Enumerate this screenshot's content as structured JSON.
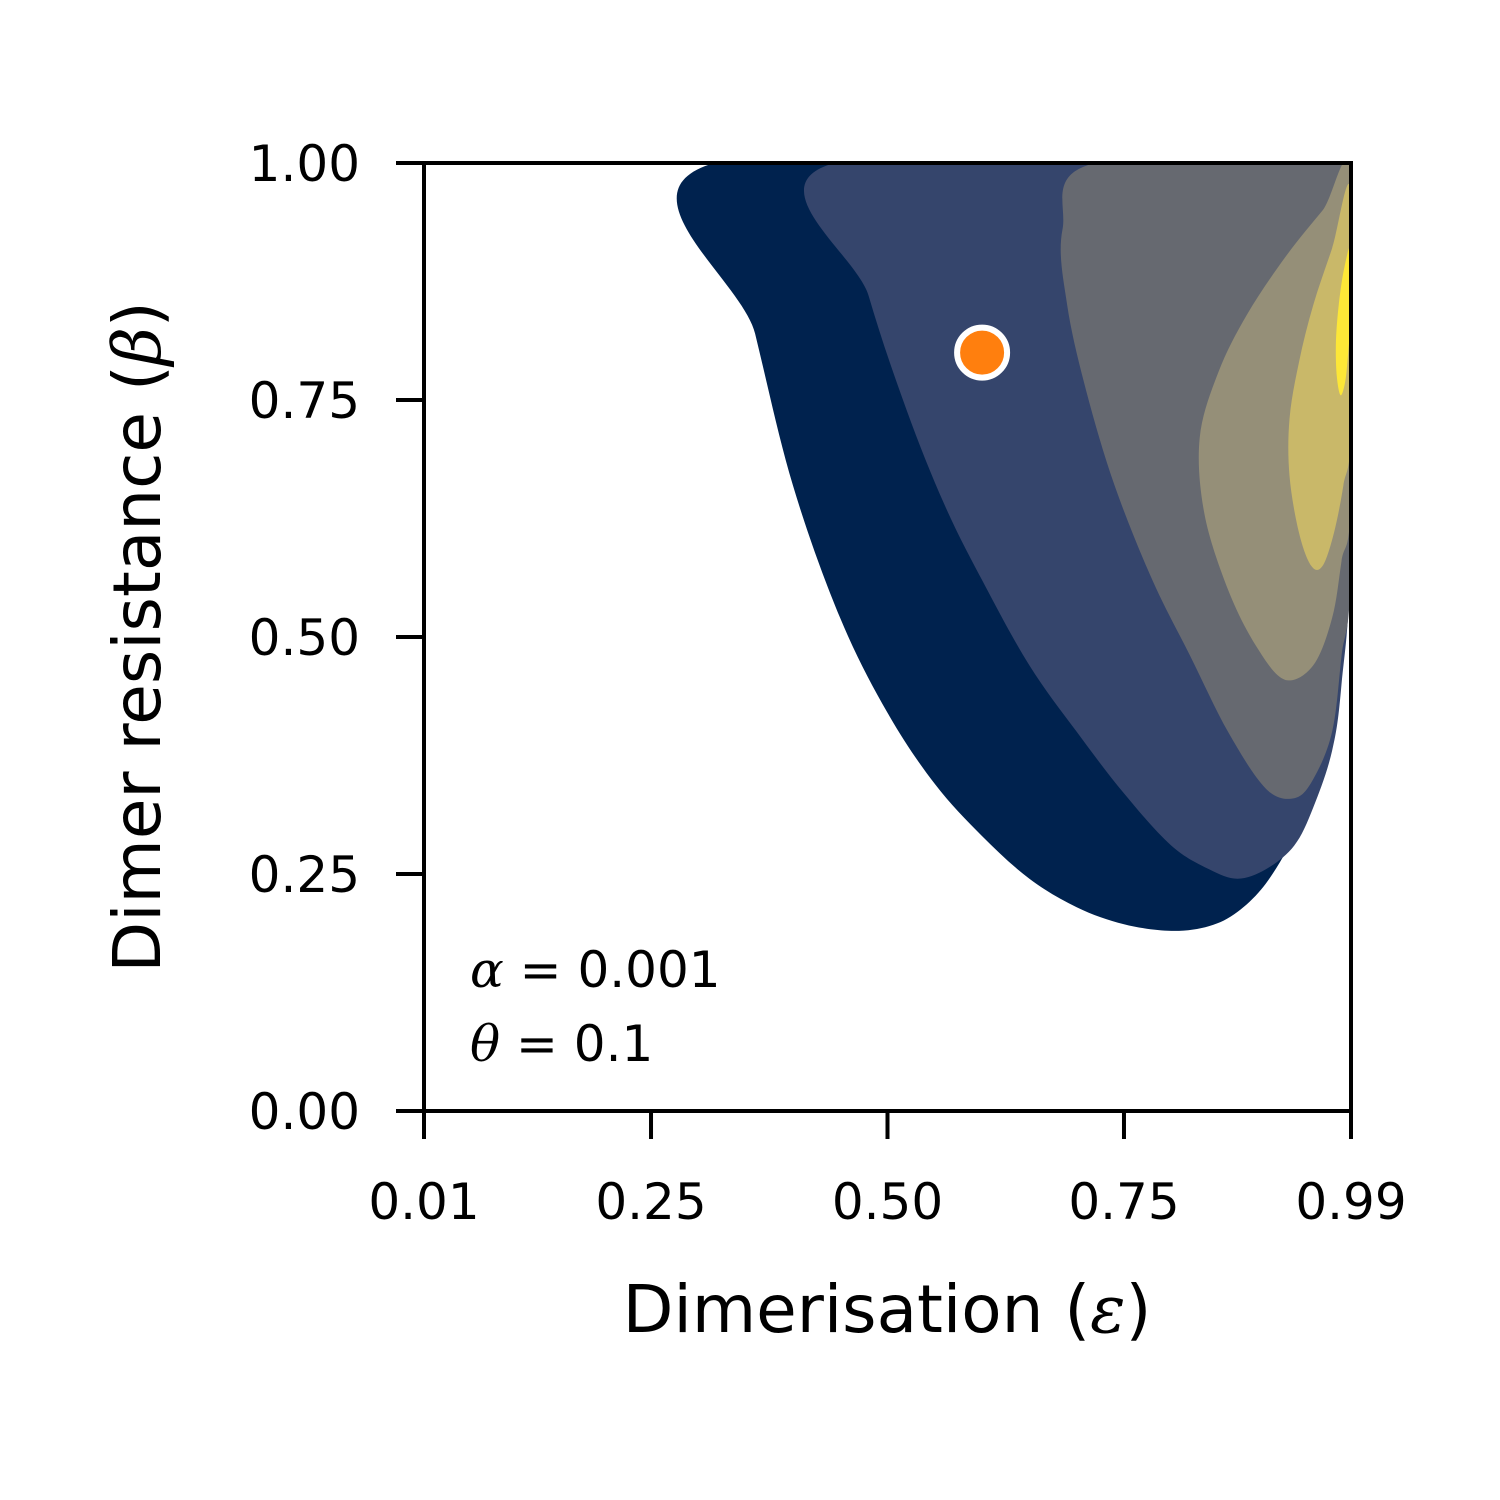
{
  "chart_data": {
    "type": "contour",
    "xlabel": {
      "text": "Dimerisation (",
      "symbol": "ε",
      "close": ")"
    },
    "ylabel": {
      "text": "Dimer resistance (",
      "symbol": "β",
      "close": ")"
    },
    "xlim": [
      0.01,
      0.99
    ],
    "ylim": [
      0.0,
      1.0
    ],
    "xticks": [
      0.01,
      0.25,
      0.5,
      0.75,
      0.99
    ],
    "xtick_labels": [
      "0.01",
      "0.25",
      "0.50",
      "0.75",
      "0.99"
    ],
    "yticks": [
      0.0,
      0.25,
      0.5,
      0.75,
      1.0
    ],
    "ytick_labels": [
      "0.00",
      "0.25",
      "0.50",
      "0.75",
      "1.00"
    ],
    "grid": false,
    "contour_levels": [
      {
        "level": 1,
        "color": "#00224e",
        "boundary": [
          [
            0.317,
            1.0
          ],
          [
            0.36,
            0.82
          ],
          [
            0.4,
            0.66
          ],
          [
            0.45,
            0.52
          ],
          [
            0.5,
            0.42
          ],
          [
            0.55,
            0.345
          ],
          [
            0.6,
            0.29
          ],
          [
            0.65,
            0.245
          ],
          [
            0.7,
            0.215
          ],
          [
            0.75,
            0.197
          ],
          [
            0.8,
            0.19
          ],
          [
            0.84,
            0.195
          ],
          [
            0.87,
            0.21
          ],
          [
            0.9,
            0.24
          ],
          [
            0.93,
            0.29
          ],
          [
            0.95,
            0.34
          ],
          [
            0.97,
            0.43
          ],
          [
            0.98,
            0.55
          ],
          [
            0.99,
            0.66
          ],
          [
            0.99,
            1.0
          ]
        ]
      },
      {
        "level": 2,
        "color": "#35456c",
        "boundary": [
          [
            0.444,
            1.0
          ],
          [
            0.48,
            0.86
          ],
          [
            0.52,
            0.74
          ],
          [
            0.56,
            0.64
          ],
          [
            0.6,
            0.56
          ],
          [
            0.65,
            0.47
          ],
          [
            0.7,
            0.4
          ],
          [
            0.75,
            0.335
          ],
          [
            0.8,
            0.28
          ],
          [
            0.84,
            0.255
          ],
          [
            0.87,
            0.245
          ],
          [
            0.9,
            0.255
          ],
          [
            0.93,
            0.28
          ],
          [
            0.95,
            0.32
          ],
          [
            0.97,
            0.38
          ],
          [
            0.98,
            0.45
          ],
          [
            0.99,
            0.6
          ],
          [
            0.99,
            1.0
          ]
        ]
      },
      {
        "level": 3,
        "color": "#666970",
        "boundary": [
          [
            0.99,
            1.0
          ],
          [
            0.72,
            1.0
          ],
          [
            0.685,
            0.93
          ],
          [
            0.69,
            0.85
          ],
          [
            0.71,
            0.76
          ],
          [
            0.74,
            0.66
          ],
          [
            0.78,
            0.56
          ],
          [
            0.82,
            0.48
          ],
          [
            0.86,
            0.4
          ],
          [
            0.9,
            0.34
          ],
          [
            0.93,
            0.33
          ],
          [
            0.95,
            0.35
          ],
          [
            0.97,
            0.4
          ],
          [
            0.98,
            0.48
          ],
          [
            0.99,
            0.58
          ]
        ]
      },
      {
        "level": 4,
        "color": "#958f78",
        "boundary": [
          [
            0.99,
            0.985
          ],
          [
            0.96,
            0.95
          ],
          [
            0.92,
            0.9
          ],
          [
            0.88,
            0.84
          ],
          [
            0.85,
            0.78
          ],
          [
            0.83,
            0.71
          ],
          [
            0.835,
            0.63
          ],
          [
            0.86,
            0.55
          ],
          [
            0.89,
            0.49
          ],
          [
            0.92,
            0.455
          ],
          [
            0.95,
            0.47
          ],
          [
            0.97,
            0.52
          ],
          [
            0.98,
            0.58
          ],
          [
            0.99,
            0.65
          ]
        ]
      },
      {
        "level": 5,
        "color": "#c9b869",
        "boundary": [
          [
            0.99,
            0.97
          ],
          [
            0.97,
            0.91
          ],
          [
            0.95,
            0.85
          ],
          [
            0.935,
            0.79
          ],
          [
            0.925,
            0.73
          ],
          [
            0.925,
            0.67
          ],
          [
            0.935,
            0.61
          ],
          [
            0.948,
            0.575
          ],
          [
            0.96,
            0.575
          ],
          [
            0.972,
            0.61
          ],
          [
            0.982,
            0.66
          ],
          [
            0.99,
            0.72
          ]
        ]
      },
      {
        "level": 6,
        "color": "#fde737",
        "boundary": [
          [
            0.99,
            0.91
          ],
          [
            0.983,
            0.89
          ],
          [
            0.977,
            0.85
          ],
          [
            0.974,
            0.81
          ],
          [
            0.975,
            0.775
          ],
          [
            0.979,
            0.755
          ],
          [
            0.984,
            0.77
          ],
          [
            0.987,
            0.8
          ],
          [
            0.99,
            0.84
          ]
        ]
      }
    ],
    "highlight_point": {
      "x": 0.6,
      "y": 0.8,
      "color": "#ff7f0e",
      "edge": "#ffffff"
    },
    "annotations": [
      {
        "symbol": "α",
        "rest": " = 0.001"
      },
      {
        "symbol": "θ",
        "rest": " = 0.1"
      }
    ]
  }
}
